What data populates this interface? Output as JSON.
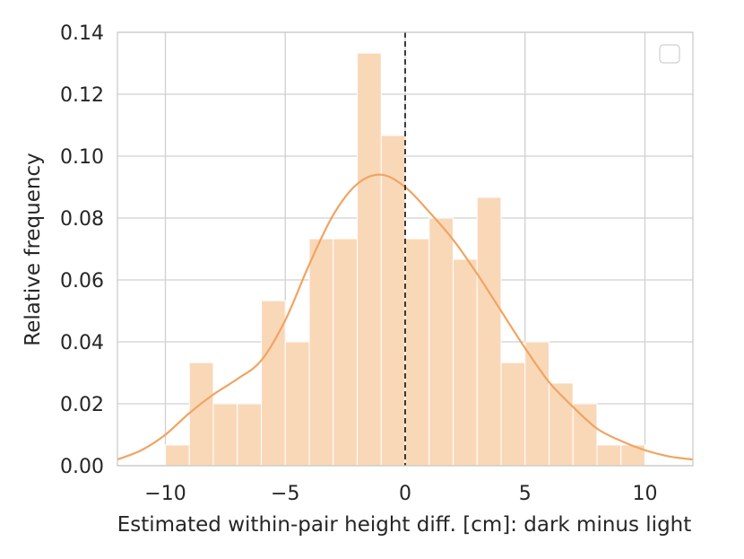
{
  "chart_data": {
    "type": "bar",
    "subtype": "histogram-with-kde",
    "title": "",
    "xlabel": "Estimated within-pair height diff. [cm]: dark minus light",
    "ylabel": "Relative frequency",
    "xlim": [
      -12,
      12
    ],
    "ylim": [
      0,
      0.14
    ],
    "xticks": [
      -10,
      -5,
      0,
      5,
      10
    ],
    "xtick_labels": [
      "−10",
      "−5",
      "0",
      "5",
      "10"
    ],
    "yticks": [
      0,
      0.02,
      0.04,
      0.06,
      0.08,
      0.1,
      0.12,
      0.14
    ],
    "ytick_labels": [
      "0.00",
      "0.02",
      "0.04",
      "0.06",
      "0.08",
      "0.10",
      "0.12",
      "0.14"
    ],
    "grid": true,
    "legend": "top-right (empty)",
    "bin_edges": [
      -10,
      -9,
      -8,
      -7,
      -6,
      -5,
      -4,
      -3,
      -2,
      -1,
      0,
      1,
      2,
      3,
      4,
      5,
      6,
      7,
      8,
      9,
      10
    ],
    "values": [
      0.0067,
      0.0333,
      0.02,
      0.02,
      0.0533,
      0.04,
      0.0733,
      0.0733,
      0.1333,
      0.1067,
      0.0733,
      0.08,
      0.0667,
      0.0867,
      0.0333,
      0.04,
      0.0267,
      0.02,
      0.0067,
      0.0067
    ],
    "kde": {
      "x": [
        -12,
        -11,
        -10,
        -9,
        -8,
        -7,
        -6,
        -5,
        -4,
        -3,
        -2,
        -1,
        0,
        1,
        2,
        3,
        4,
        5,
        6,
        7,
        8,
        9,
        10,
        11,
        12
      ],
      "y": [
        0.002,
        0.005,
        0.01,
        0.017,
        0.023,
        0.028,
        0.034,
        0.047,
        0.065,
        0.081,
        0.091,
        0.094,
        0.09,
        0.082,
        0.073,
        0.062,
        0.05,
        0.038,
        0.027,
        0.019,
        0.012,
        0.008,
        0.005,
        0.003,
        0.002
      ]
    },
    "reference_line_x": 0,
    "colors": {
      "bars": "#f9d8b8",
      "kde": "#f0a463",
      "grid": "#d0d0d0",
      "reference": "#000000",
      "axes": "#c8c8c8"
    }
  }
}
